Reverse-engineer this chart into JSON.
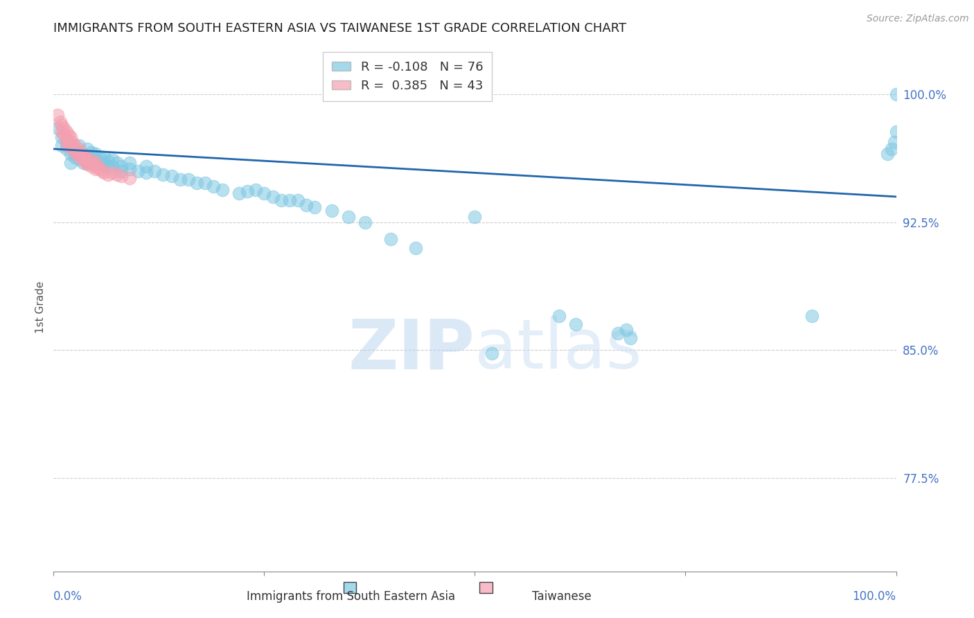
{
  "title": "IMMIGRANTS FROM SOUTH EASTERN ASIA VS TAIWANESE 1ST GRADE CORRELATION CHART",
  "source": "Source: ZipAtlas.com",
  "ylabel": "1st Grade",
  "ytick_labels": [
    "100.0%",
    "92.5%",
    "85.0%",
    "77.5%"
  ],
  "ytick_values": [
    1.0,
    0.925,
    0.85,
    0.775
  ],
  "xlim": [
    0.0,
    1.0
  ],
  "ylim": [
    0.72,
    1.03
  ],
  "legend_blue_R": "-0.108",
  "legend_blue_N": "76",
  "legend_pink_R": "0.385",
  "legend_pink_N": "43",
  "legend_label_blue": "Immigrants from South Eastern Asia",
  "legend_label_pink": "Taiwanese",
  "blue_color": "#7ec8e3",
  "pink_color": "#f4a0b0",
  "trendline_color": "#2166ac",
  "watermark_zip": "ZIP",
  "watermark_atlas": "atlas",
  "blue_scatter_x": [
    0.005,
    0.01,
    0.01,
    0.015,
    0.015,
    0.02,
    0.02,
    0.02,
    0.025,
    0.025,
    0.025,
    0.03,
    0.03,
    0.03,
    0.035,
    0.035,
    0.04,
    0.04,
    0.04,
    0.045,
    0.045,
    0.05,
    0.05,
    0.055,
    0.055,
    0.06,
    0.06,
    0.065,
    0.065,
    0.07,
    0.07,
    0.075,
    0.08,
    0.08,
    0.09,
    0.09,
    0.1,
    0.11,
    0.11,
    0.12,
    0.13,
    0.14,
    0.15,
    0.16,
    0.17,
    0.18,
    0.19,
    0.2,
    0.22,
    0.23,
    0.24,
    0.25,
    0.26,
    0.27,
    0.28,
    0.29,
    0.3,
    0.31,
    0.33,
    0.35,
    0.37,
    0.4,
    0.43,
    0.5,
    0.52,
    0.6,
    0.62,
    0.67,
    0.68,
    0.685,
    0.9,
    0.99,
    0.995,
    0.998,
    1.0,
    1.0
  ],
  "blue_scatter_y": [
    0.98,
    0.975,
    0.97,
    0.972,
    0.968,
    0.97,
    0.965,
    0.96,
    0.968,
    0.965,
    0.963,
    0.97,
    0.966,
    0.962,
    0.965,
    0.96,
    0.968,
    0.964,
    0.96,
    0.966,
    0.962,
    0.965,
    0.962,
    0.963,
    0.96,
    0.963,
    0.96,
    0.961,
    0.958,
    0.962,
    0.958,
    0.96,
    0.958,
    0.955,
    0.96,
    0.956,
    0.955,
    0.958,
    0.954,
    0.955,
    0.953,
    0.952,
    0.95,
    0.95,
    0.948,
    0.948,
    0.946,
    0.944,
    0.942,
    0.943,
    0.944,
    0.942,
    0.94,
    0.938,
    0.938,
    0.938,
    0.935,
    0.934,
    0.932,
    0.928,
    0.925,
    0.915,
    0.91,
    0.928,
    0.848,
    0.87,
    0.865,
    0.86,
    0.862,
    0.857,
    0.87,
    0.965,
    0.968,
    0.972,
    0.978,
    1.0
  ],
  "pink_scatter_x": [
    0.005,
    0.008,
    0.01,
    0.01,
    0.012,
    0.012,
    0.015,
    0.015,
    0.015,
    0.018,
    0.018,
    0.02,
    0.02,
    0.022,
    0.022,
    0.025,
    0.025,
    0.027,
    0.03,
    0.03,
    0.032,
    0.032,
    0.035,
    0.035,
    0.038,
    0.038,
    0.04,
    0.04,
    0.042,
    0.045,
    0.045,
    0.048,
    0.05,
    0.05,
    0.052,
    0.055,
    0.058,
    0.06,
    0.065,
    0.07,
    0.075,
    0.08,
    0.09
  ],
  "pink_scatter_y": [
    0.988,
    0.984,
    0.982,
    0.978,
    0.98,
    0.976,
    0.978,
    0.974,
    0.97,
    0.976,
    0.972,
    0.975,
    0.971,
    0.972,
    0.968,
    0.97,
    0.967,
    0.965,
    0.968,
    0.964,
    0.966,
    0.963,
    0.964,
    0.962,
    0.963,
    0.96,
    0.962,
    0.959,
    0.96,
    0.961,
    0.958,
    0.959,
    0.96,
    0.956,
    0.957,
    0.956,
    0.955,
    0.954,
    0.953,
    0.954,
    0.953,
    0.952,
    0.951
  ],
  "trendline_x": [
    0.0,
    1.0
  ],
  "trendline_y": [
    0.968,
    0.94
  ],
  "grid_color": "#cccccc",
  "background_color": "#ffffff",
  "title_fontsize": 13,
  "axis_label_color": "#555555",
  "ytick_color": "#4472c4",
  "xtick_color": "#4472c4"
}
